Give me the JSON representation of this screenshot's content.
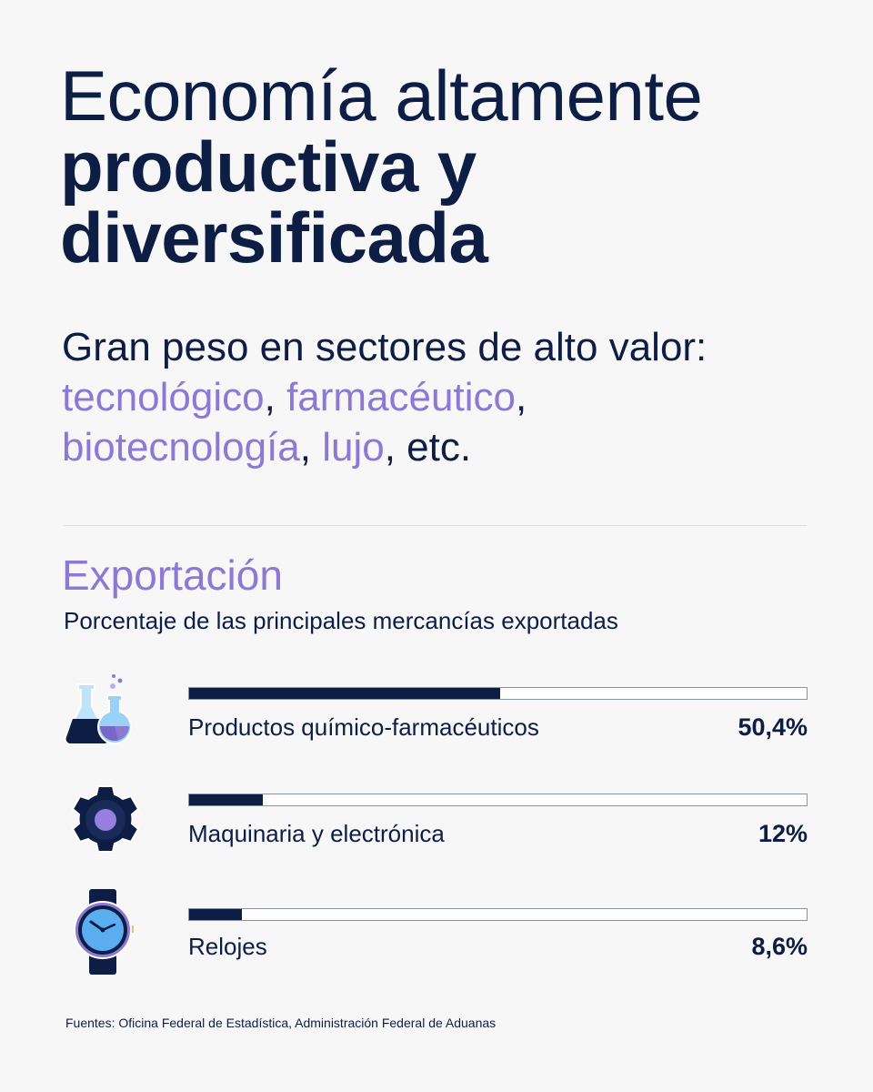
{
  "header": {
    "title_line1": "Economía altamente",
    "title_line2": "productiva y",
    "title_line3": "diversificada"
  },
  "intro": {
    "text_before": "Gran peso en sectores de alto valor:",
    "sector1": "tecnológico",
    "sep1": ", ",
    "sector2": "farmacéutico",
    "sep2": ",",
    "sector3": "biotecnología",
    "sep3": ", ",
    "sector4": "lujo",
    "tail": ", etc."
  },
  "section": {
    "title": "Exportación",
    "description": "Porcentaje de las principales mercancías exportadas"
  },
  "chart_data": {
    "type": "bar",
    "orientation": "horizontal",
    "unit": "%",
    "xlim": [
      0,
      100
    ],
    "categories": [
      "Productos químico-farmacéuticos",
      "Maquinaria y electrónica",
      "Relojes"
    ],
    "values": [
      50.4,
      12,
      8.6
    ],
    "value_labels": [
      "50,4%",
      "12%",
      "8,6%"
    ],
    "icons": [
      "lab-flasks-icon",
      "gear-icon",
      "wristwatch-icon"
    ]
  },
  "colors": {
    "navy": "#0d1d44",
    "accent_purple": "#8b79d4",
    "background": "#f7f7f8"
  },
  "footer": {
    "sources": "Fuentes: Oficina Federal de Estadística, Administración Federal de Aduanas"
  }
}
